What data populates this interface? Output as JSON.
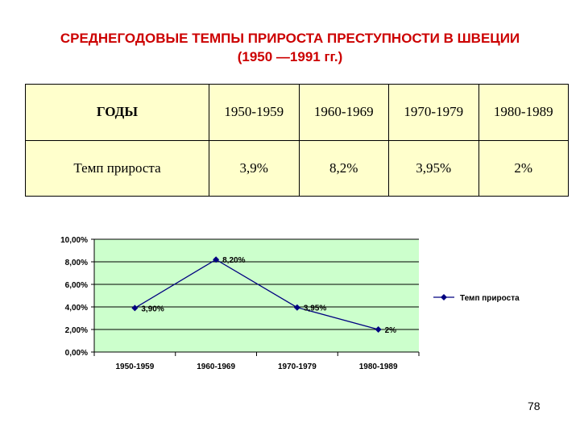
{
  "slide": {
    "title_line1": "СРЕДНЕГОДОВЫЕ ТЕМПЫ ПРИРОСТА ПРЕСТУПНОСТИ В ШВЕЦИИ",
    "title_line2": "(1950 —1991 гг.)",
    "page_number": "78"
  },
  "table": {
    "header_label": "ГОДЫ",
    "periods": [
      "1950-1959",
      "1960-1969",
      "1970-1979",
      "1980-1989"
    ],
    "row_label": "Темп прироста",
    "values": [
      "3,9%",
      "8,2%",
      "3,95%",
      "2%"
    ]
  },
  "colors": {
    "title": "#cc0000",
    "table_background": "#ffffcc",
    "plot_background": "#ccffcc",
    "series_line": "#000080"
  },
  "chart_data": {
    "type": "line",
    "categories": [
      "1950-1959",
      "1960-1969",
      "1970-1979",
      "1980-1989"
    ],
    "series": [
      {
        "name": "Темп прироста",
        "values": [
          3.9,
          8.2,
          3.95,
          2
        ],
        "labels": [
          "3,90%",
          "8,20%",
          "3,95%",
          "2%"
        ]
      }
    ],
    "y_ticks": [
      "0,00%",
      "2,00%",
      "4,00%",
      "6,00%",
      "8,00%",
      "10,00%"
    ],
    "ylim": [
      0,
      10
    ],
    "grid": true,
    "legend": "right"
  }
}
